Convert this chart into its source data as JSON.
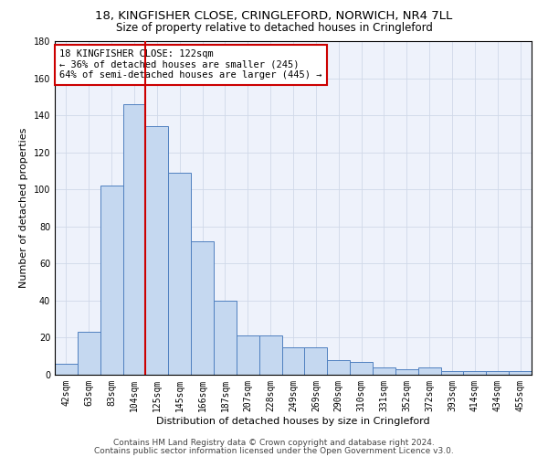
{
  "title": "18, KINGFISHER CLOSE, CRINGLEFORD, NORWICH, NR4 7LL",
  "subtitle": "Size of property relative to detached houses in Cringleford",
  "xlabel": "Distribution of detached houses by size in Cringleford",
  "ylabel": "Number of detached properties",
  "categories": [
    "42sqm",
    "63sqm",
    "83sqm",
    "104sqm",
    "125sqm",
    "145sqm",
    "166sqm",
    "187sqm",
    "207sqm",
    "228sqm",
    "249sqm",
    "269sqm",
    "290sqm",
    "310sqm",
    "331sqm",
    "352sqm",
    "372sqm",
    "393sqm",
    "414sqm",
    "434sqm",
    "455sqm"
  ],
  "values": [
    6,
    23,
    102,
    146,
    134,
    109,
    72,
    40,
    21,
    21,
    15,
    15,
    8,
    7,
    4,
    3,
    4,
    2,
    2,
    2,
    2
  ],
  "bar_color": "#c5d8f0",
  "bar_edge_color": "#5080c0",
  "vline_color": "#cc0000",
  "vline_x": 3.5,
  "annotation_text": "18 KINGFISHER CLOSE: 122sqm\n← 36% of detached houses are smaller (245)\n64% of semi-detached houses are larger (445) →",
  "annotation_box_color": "#ffffff",
  "annotation_box_edge": "#cc0000",
  "ylim": [
    0,
    180
  ],
  "yticks": [
    0,
    20,
    40,
    60,
    80,
    100,
    120,
    140,
    160,
    180
  ],
  "grid_color": "#d0d8e8",
  "bg_color": "#eef2fb",
  "footer1": "Contains HM Land Registry data © Crown copyright and database right 2024.",
  "footer2": "Contains public sector information licensed under the Open Government Licence v3.0.",
  "title_fontsize": 9.5,
  "subtitle_fontsize": 8.5,
  "xlabel_fontsize": 8,
  "ylabel_fontsize": 8,
  "tick_fontsize": 7,
  "annotation_fontsize": 7.5,
  "footer_fontsize": 6.5
}
